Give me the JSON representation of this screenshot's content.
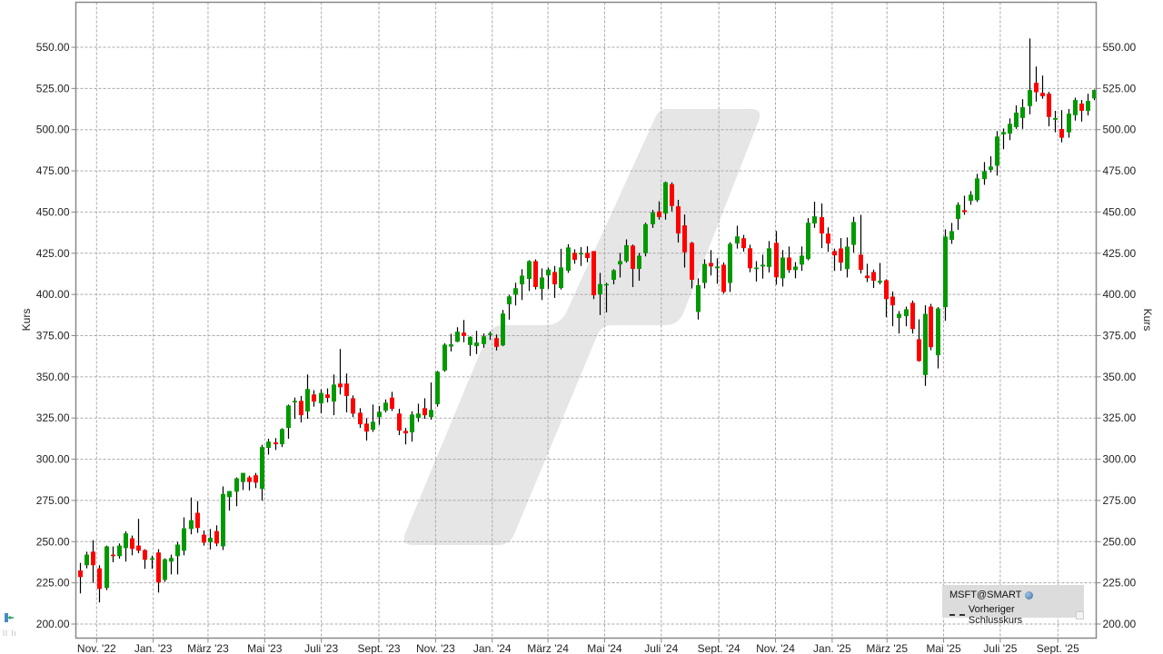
{
  "chart_data": {
    "type": "candlestick",
    "title": "",
    "xlabel": "",
    "ylabel": "Kurs",
    "ylabel_right": "Kurs",
    "ylim": [
      191.7,
      577
    ],
    "grid": true,
    "interval": "weekly",
    "colors": {
      "up": "#009a00",
      "down": "#ff0000",
      "wick": "#000000",
      "grid": "#a8a8a8",
      "watermark": "#e6e6e6"
    },
    "y_ticks": [
      "200.00",
      "225.00",
      "250.00",
      "275.00",
      "300.00",
      "325.00",
      "350.00",
      "375.00",
      "400.00",
      "425.00",
      "450.00",
      "475.00",
      "500.00",
      "525.00",
      "550.00"
    ],
    "x_ticks": [
      {
        "date": "2022-11-01",
        "label": "Nov. '22"
      },
      {
        "date": "2023-01-01",
        "label": "Jan. '23"
      },
      {
        "date": "2023-03-01",
        "label": "März '23"
      },
      {
        "date": "2023-05-01",
        "label": "Mai '23"
      },
      {
        "date": "2023-07-01",
        "label": "Juli '23"
      },
      {
        "date": "2023-09-01",
        "label": "Sept. '23"
      },
      {
        "date": "2023-11-01",
        "label": "Nov. '23"
      },
      {
        "date": "2024-01-01",
        "label": "Jan. '24"
      },
      {
        "date": "2024-03-01",
        "label": "März '24"
      },
      {
        "date": "2024-05-01",
        "label": "Mai '24"
      },
      {
        "date": "2024-07-01",
        "label": "Juli '24"
      },
      {
        "date": "2024-09-01",
        "label": "Sept. '24"
      },
      {
        "date": "2024-11-01",
        "label": "Nov. '24"
      },
      {
        "date": "2025-01-01",
        "label": "Jan. '25"
      },
      {
        "date": "2025-03-01",
        "label": "März '25"
      },
      {
        "date": "2025-05-01",
        "label": "Mai '25"
      },
      {
        "date": "2025-07-01",
        "label": "Juli '25"
      },
      {
        "date": "2025-09-01",
        "label": "Sept. '25"
      }
    ],
    "columns": [
      "date",
      "open",
      "high",
      "low",
      "close"
    ],
    "candles": [
      [
        "2022-10-14",
        232.5,
        237.1,
        218.6,
        228.5
      ],
      [
        "2022-10-21",
        235.7,
        243.9,
        233.8,
        242.1
      ],
      [
        "2022-10-28",
        243.9,
        250.9,
        225.0,
        235.7
      ],
      [
        "2022-11-04",
        233.8,
        235.7,
        213.1,
        221.3
      ],
      [
        "2022-11-11",
        221.9,
        247.6,
        220.6,
        247.1
      ],
      [
        "2022-11-18",
        242.1,
        247.1,
        237.5,
        241.2
      ],
      [
        "2022-11-25",
        241.2,
        248.9,
        239.7,
        247.6
      ],
      [
        "2022-12-02",
        246.1,
        256.3,
        237.9,
        255.0
      ],
      [
        "2022-12-09",
        252.0,
        253.7,
        241.7,
        245.6
      ],
      [
        "2022-12-16",
        247.6,
        263.8,
        243.0,
        244.5
      ],
      [
        "2022-12-23",
        244.9,
        245.4,
        233.5,
        239.0
      ],
      [
        "2022-12-30",
        239.0,
        241.5,
        233.5,
        239.9
      ],
      [
        "2023-01-06",
        243.4,
        245.4,
        219.1,
        225.2
      ],
      [
        "2023-01-13",
        226.8,
        239.9,
        225.6,
        239.3
      ],
      [
        "2023-01-20",
        237.9,
        242.1,
        230.1,
        240.1
      ],
      [
        "2023-01-27",
        241.2,
        249.8,
        230.1,
        248.2
      ],
      [
        "2023-02-03",
        244.5,
        264.7,
        241.7,
        258.1
      ],
      [
        "2023-02-10",
        257.7,
        276.8,
        254.4,
        263.0
      ],
      [
        "2023-02-17",
        267.5,
        274.6,
        255.3,
        258.3
      ],
      [
        "2023-02-24",
        254.2,
        256.8,
        247.6,
        249.4
      ],
      [
        "2023-03-03",
        249.7,
        257.7,
        245.2,
        252.3
      ],
      [
        "2023-03-10",
        256.4,
        259.9,
        247.2,
        248.9
      ],
      [
        "2023-03-17",
        247.2,
        283.5,
        244.9,
        278.9
      ],
      [
        "2023-03-24",
        277.0,
        280.7,
        268.8,
        280.7
      ],
      [
        "2023-03-31",
        280.3,
        289.0,
        271.5,
        288.4
      ],
      [
        "2023-04-07",
        286.2,
        291.7,
        281.3,
        291.7
      ],
      [
        "2023-04-14",
        289.0,
        290.0,
        281.1,
        286.2
      ],
      [
        "2023-04-21",
        290.3,
        291.7,
        282.5,
        285.8
      ],
      [
        "2023-04-28",
        282.0,
        308.8,
        274.8,
        307.4
      ],
      [
        "2023-05-05",
        306.9,
        312.4,
        302.8,
        310.7
      ],
      [
        "2023-05-12",
        310.2,
        312.8,
        305.6,
        309.1
      ],
      [
        "2023-05-19",
        309.1,
        318.8,
        307.4,
        318.3
      ],
      [
        "2023-05-26",
        319.0,
        333.2,
        312.4,
        332.6
      ],
      [
        "2023-06-02",
        334.5,
        337.4,
        324.5,
        335.4
      ],
      [
        "2023-06-09",
        335.4,
        338.4,
        322.3,
        326.7
      ],
      [
        "2023-06-16",
        329.0,
        351.4,
        324.5,
        342.6
      ],
      [
        "2023-06-23",
        339.3,
        341.9,
        331.9,
        335.0
      ],
      [
        "2023-06-30",
        333.9,
        342.4,
        327.9,
        340.2
      ],
      [
        "2023-07-07",
        339.3,
        343.0,
        334.5,
        337.2
      ],
      [
        "2023-07-14",
        335.0,
        351.4,
        326.7,
        345.3
      ],
      [
        "2023-07-21",
        345.9,
        366.9,
        339.3,
        343.7
      ],
      [
        "2023-07-28",
        345.9,
        352.0,
        328.4,
        338.4
      ],
      [
        "2023-08-04",
        337.0,
        338.7,
        325.5,
        327.7
      ],
      [
        "2023-08-11",
        328.2,
        331.0,
        319.0,
        321.2
      ],
      [
        "2023-08-18",
        321.6,
        324.9,
        311.3,
        316.8
      ],
      [
        "2023-08-25",
        317.9,
        333.2,
        316.6,
        322.7
      ],
      [
        "2023-09-01",
        325.6,
        332.3,
        320.9,
        328.8
      ],
      [
        "2023-09-08",
        329.5,
        336.3,
        328.4,
        334.3
      ],
      [
        "2023-09-15",
        337.4,
        340.9,
        329.3,
        330.6
      ],
      [
        "2023-09-22",
        327.7,
        330.6,
        314.6,
        317.4
      ],
      [
        "2023-09-29",
        317.2,
        319.0,
        309.0,
        315.7
      ],
      [
        "2023-10-06",
        316.4,
        329.1,
        310.7,
        327.1
      ],
      [
        "2023-10-13",
        325.1,
        333.7,
        322.7,
        327.7
      ],
      [
        "2023-10-20",
        331.0,
        337.0,
        324.5,
        326.7
      ],
      [
        "2023-10-27",
        325.6,
        346.6,
        324.0,
        329.9
      ],
      [
        "2023-11-03",
        333.4,
        353.6,
        331.9,
        353.1
      ],
      [
        "2023-11-10",
        353.8,
        370.4,
        353.1,
        369.5
      ],
      [
        "2023-11-17",
        368.4,
        376.1,
        365.4,
        369.7
      ],
      [
        "2023-11-24",
        371.3,
        380.1,
        371.0,
        377.4
      ],
      [
        "2023-12-01",
        376.8,
        384.5,
        371.0,
        374.8
      ],
      [
        "2023-12-08",
        369.3,
        374.6,
        362.7,
        374.3
      ],
      [
        "2023-12-15",
        368.6,
        377.9,
        363.8,
        370.8
      ],
      [
        "2023-12-22",
        369.9,
        376.3,
        367.7,
        374.6
      ],
      [
        "2023-12-29",
        375.4,
        377.4,
        372.4,
        376.3
      ],
      [
        "2024-01-05",
        373.5,
        375.7,
        366.0,
        368.2
      ],
      [
        "2024-01-12",
        369.1,
        390.6,
        368.6,
        388.4
      ],
      [
        "2024-01-19",
        394.0,
        399.7,
        384.7,
        398.8
      ],
      [
        "2024-01-26",
        399.9,
        407.1,
        393.3,
        403.8
      ],
      [
        "2024-02-02",
        406.1,
        415.3,
        396.6,
        411.4
      ],
      [
        "2024-02-09",
        409.4,
        420.8,
        402.1,
        420.2
      ],
      [
        "2024-02-16",
        420.2,
        421.3,
        403.0,
        404.5
      ],
      [
        "2024-02-23",
        403.4,
        415.8,
        396.6,
        410.3
      ],
      [
        "2024-03-01",
        411.6,
        416.2,
        403.4,
        415.1
      ],
      [
        "2024-03-08",
        413.6,
        417.3,
        397.9,
        406.1
      ],
      [
        "2024-03-15",
        403.9,
        427.7,
        403.0,
        416.4
      ],
      [
        "2024-03-22",
        414.4,
        430.5,
        413.1,
        428.5
      ],
      [
        "2024-03-29",
        425.2,
        427.4,
        418.6,
        421.0
      ],
      [
        "2024-04-05",
        424.3,
        428.7,
        417.3,
        425.2
      ],
      [
        "2024-04-12",
        425.2,
        429.2,
        419.5,
        422.1
      ],
      [
        "2024-04-19",
        426.3,
        426.3,
        397.2,
        399.5
      ],
      [
        "2024-04-26",
        400.0,
        413.1,
        387.5,
        406.3
      ],
      [
        "2024-05-03",
        405.6,
        407.1,
        389.1,
        406.3
      ],
      [
        "2024-05-10",
        408.9,
        415.3,
        406.1,
        414.7
      ],
      [
        "2024-05-17",
        418.2,
        425.2,
        410.3,
        420.2
      ],
      [
        "2024-05-24",
        420.2,
        433.4,
        419.3,
        429.9
      ],
      [
        "2024-05-31",
        429.6,
        430.3,
        404.5,
        415.5
      ],
      [
        "2024-06-07",
        415.5,
        425.2,
        408.3,
        423.5
      ],
      [
        "2024-06-14",
        425.0,
        443.5,
        423.1,
        442.6
      ],
      [
        "2024-06-21",
        442.6,
        451.3,
        440.4,
        449.8
      ],
      [
        "2024-06-28",
        450.4,
        456.5,
        445.4,
        447.0
      ],
      [
        "2024-07-05",
        449.1,
        468.5,
        445.4,
        468.0
      ],
      [
        "2024-07-12",
        466.9,
        468.0,
        450.4,
        453.7
      ],
      [
        "2024-07-19",
        453.5,
        457.4,
        431.5,
        437.0
      ],
      [
        "2024-07-26",
        441.9,
        448.5,
        416.3,
        425.6
      ],
      [
        "2024-08-02",
        431.3,
        431.9,
        403.7,
        408.9
      ],
      [
        "2024-08-09",
        389.4,
        409.8,
        384.8,
        405.6
      ],
      [
        "2024-08-16",
        407.0,
        421.3,
        403.7,
        418.5
      ],
      [
        "2024-08-23",
        419.1,
        426.9,
        411.5,
        417.0
      ],
      [
        "2024-08-30",
        415.9,
        421.9,
        406.5,
        416.9
      ],
      [
        "2024-09-06",
        418.0,
        419.4,
        400.4,
        401.5
      ],
      [
        "2024-09-13",
        407.0,
        431.7,
        401.5,
        430.7
      ],
      [
        "2024-09-20",
        430.9,
        441.7,
        427.8,
        435.2
      ],
      [
        "2024-09-27",
        434.1,
        436.1,
        425.9,
        428.1
      ],
      [
        "2024-10-04",
        428.0,
        430.2,
        413.5,
        415.9
      ],
      [
        "2024-10-11",
        415.4,
        420.2,
        407.8,
        416.3
      ],
      [
        "2024-10-18",
        417.0,
        424.1,
        409.6,
        418.0
      ],
      [
        "2024-10-25",
        416.7,
        432.4,
        413.3,
        428.0
      ],
      [
        "2024-11-01",
        431.3,
        438.5,
        405.9,
        410.4
      ],
      [
        "2024-11-08",
        409.8,
        426.9,
        404.8,
        422.4
      ],
      [
        "2024-11-15",
        422.4,
        429.1,
        413.1,
        414.8
      ],
      [
        "2024-11-22",
        414.8,
        419.6,
        409.8,
        416.9
      ],
      [
        "2024-11-29",
        418.1,
        429.1,
        414.3,
        423.5
      ],
      [
        "2024-12-06",
        421.5,
        446.3,
        420.7,
        443.5
      ],
      [
        "2024-12-13",
        443.1,
        456.3,
        440.4,
        447.4
      ],
      [
        "2024-12-20",
        446.9,
        455.2,
        428.1,
        437.0
      ],
      [
        "2024-12-27",
        436.9,
        440.7,
        425.9,
        430.9
      ],
      [
        "2025-01-03",
        426.3,
        427.8,
        414.3,
        423.7
      ],
      [
        "2025-01-10",
        427.9,
        434.2,
        414.3,
        419.3
      ],
      [
        "2025-01-17",
        415.4,
        434.6,
        410.3,
        429.0
      ],
      [
        "2025-01-24",
        430.1,
        447.1,
        425.4,
        443.9
      ],
      [
        "2025-01-31",
        424.1,
        448.3,
        412.7,
        414.9
      ],
      [
        "2025-02-07",
        411.4,
        418.6,
        407.5,
        409.9
      ],
      [
        "2025-02-14",
        413.6,
        415.1,
        403.9,
        408.3
      ],
      [
        "2025-02-21",
        407.2,
        419.1,
        406.1,
        408.3
      ],
      [
        "2025-02-28",
        408.6,
        409.2,
        386.2,
        397.2
      ],
      [
        "2025-03-07",
        398.7,
        401.8,
        380.7,
        393.4
      ],
      [
        "2025-03-14",
        385.7,
        389.9,
        376.3,
        388.2
      ],
      [
        "2025-03-21",
        386.8,
        392.6,
        380.7,
        391.0
      ],
      [
        "2025-03-28",
        394.9,
        396.3,
        376.3,
        379.0
      ],
      [
        "2025-04-04",
        372.8,
        384.9,
        359.2,
        359.6
      ],
      [
        "2025-04-11",
        351.1,
        393.4,
        344.5,
        388.2
      ],
      [
        "2025-04-17",
        392.6,
        394.3,
        366.2,
        368.0
      ],
      [
        "2025-04-25",
        363.1,
        392.3,
        355.1,
        391.5
      ],
      [
        "2025-05-02",
        392.3,
        439.5,
        384.0,
        435.1
      ],
      [
        "2025-05-09",
        433.1,
        443.4,
        430.7,
        438.4
      ],
      [
        "2025-05-16",
        445.8,
        455.9,
        439.2,
        454.4
      ],
      [
        "2025-05-23",
        451.1,
        459.9,
        448.3,
        450.0
      ],
      [
        "2025-05-30",
        456.8,
        462.7,
        454.4,
        460.5
      ],
      [
        "2025-06-06",
        457.2,
        473.2,
        456.1,
        470.4
      ],
      [
        "2025-06-13",
        470.0,
        480.3,
        466.5,
        474.8
      ],
      [
        "2025-06-20",
        475.6,
        483.8,
        474.1,
        477.6
      ],
      [
        "2025-06-27",
        478.1,
        499.1,
        472.1,
        495.8
      ],
      [
        "2025-07-04",
        497.1,
        500.7,
        488.1,
        498.5
      ],
      [
        "2025-07-11",
        497.6,
        506.8,
        493.6,
        503.5
      ],
      [
        "2025-07-18",
        501.5,
        514.7,
        500.5,
        510.3
      ],
      [
        "2025-07-25",
        507.1,
        518.5,
        500.5,
        513.6
      ],
      [
        "2025-08-01",
        514.3,
        555.3,
        509.3,
        524.0
      ],
      [
        "2025-08-08",
        528.4,
        538.3,
        517.0,
        522.7
      ],
      [
        "2025-08-15",
        522.3,
        532.8,
        518.7,
        520.3
      ],
      [
        "2025-08-22",
        521.8,
        522.9,
        502.0,
        507.7
      ],
      [
        "2025-08-29",
        506.0,
        511.4,
        498.4,
        507.0
      ],
      [
        "2025-09-05",
        500.4,
        511.9,
        492.3,
        495.1
      ],
      [
        "2025-09-12",
        498.4,
        512.5,
        495.1,
        509.7
      ],
      [
        "2025-09-19",
        508.8,
        519.4,
        505.5,
        518.0
      ],
      [
        "2025-09-26",
        515.8,
        518.0,
        504.9,
        511.4
      ],
      [
        "2025-10-03",
        511.4,
        521.8,
        508.6,
        517.4
      ],
      [
        "2025-10-10",
        519.0,
        524.4,
        517.9,
        524.0
      ]
    ]
  },
  "legend": {
    "symbol": "MSFT@SMART",
    "symbol_icon": "globe-icon",
    "previous_close_label": "Vorheriger Schlusskurs"
  }
}
